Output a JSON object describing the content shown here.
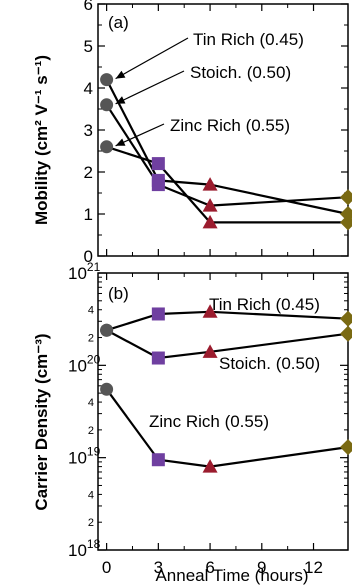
{
  "chart_data": [
    {
      "panel_label": "(a)",
      "type": "line",
      "ylabel": "Mobility (cm² V⁻¹ s⁻¹)",
      "ylim": [
        0,
        6
      ],
      "yticks": [
        0,
        1,
        2,
        3,
        4,
        5,
        6
      ],
      "ytick_labels": [
        "0",
        "1",
        "2",
        "3",
        "4",
        "5",
        "6"
      ],
      "x": [
        0,
        3,
        6,
        14
      ],
      "series": [
        {
          "name": "Tin Rich (0.45)",
          "values": [
            4.2,
            1.8,
            1.7,
            1.0
          ]
        },
        {
          "name": "Stoich. (0.50)",
          "values": [
            3.6,
            1.7,
            1.2,
            1.4
          ]
        },
        {
          "name": "Zinc Rich (0.55)",
          "values": [
            2.6,
            2.2,
            0.8,
            0.8
          ]
        }
      ],
      "marker_colors": [
        "#555555",
        "#6f3fa0",
        "#9b1c2e",
        "#7a6a12"
      ],
      "annotations": [
        "Tin Rich (0.45)",
        "Stoich. (0.50)",
        "Zinc Rich (0.55)"
      ]
    },
    {
      "panel_label": "(b)",
      "type": "line",
      "yscale": "log",
      "ylabel": "Carrier Density (cm⁻³)",
      "ylim": [
        1e+18,
        1e+21
      ],
      "major_tick_labels": [
        {
          "base": "10",
          "exp": "18"
        },
        {
          "base": "10",
          "exp": "19"
        },
        {
          "base": "10",
          "exp": "20"
        },
        {
          "base": "10",
          "exp": "21"
        }
      ],
      "minor_tick_labels": [
        "2",
        "4"
      ],
      "xlabel": "Anneal Time (hours)",
      "xlim": [
        -0.5,
        14
      ],
      "xticks": [
        0,
        3,
        6,
        9,
        12
      ],
      "xtick_labels": [
        "0",
        "3",
        "6",
        "9",
        "12"
      ],
      "x": [
        0,
        3,
        6,
        14
      ],
      "series": [
        {
          "name": "Tin Rich (0.45)",
          "values": [
            2.4e+20,
            3.6e+20,
            3.8e+20,
            3.2e+20
          ]
        },
        {
          "name": "Stoich. (0.50)",
          "values": [
            2.4e+20,
            1.2e+20,
            1.4e+20,
            2.2e+20
          ]
        },
        {
          "name": "Zinc Rich (0.55)",
          "values": [
            5.5e+19,
            9.5e+18,
            8e+18,
            1.3e+19
          ]
        }
      ],
      "marker_colors": [
        "#555555",
        "#6f3fa0",
        "#9b1c2e",
        "#7a6a12"
      ],
      "annotations": [
        "Tin Rich (0.45)",
        "Stoich. (0.50)",
        "Zinc Rich (0.55)"
      ]
    }
  ]
}
